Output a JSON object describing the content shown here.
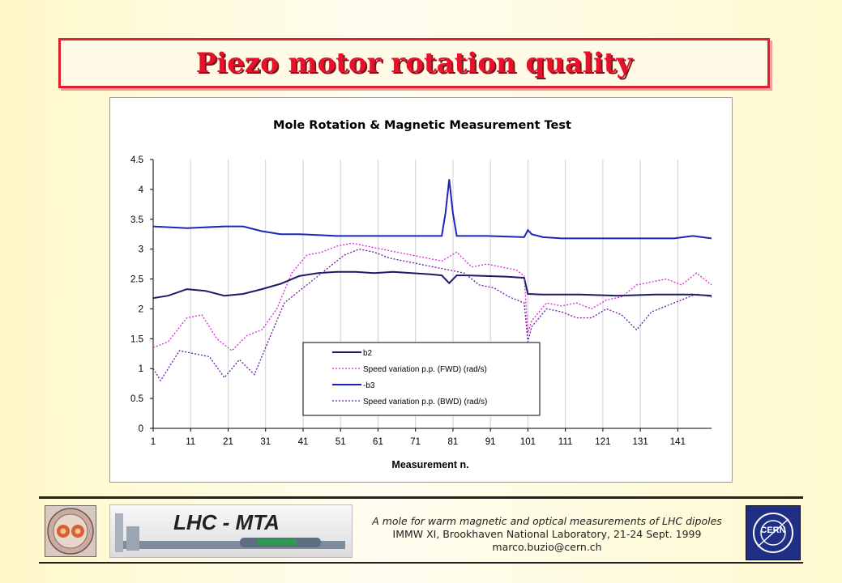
{
  "slide": {
    "title": "Piezo motor rotation quality"
  },
  "footer": {
    "line1": "A mole for warm magnetic and optical measurements  of LHC dipoles",
    "line2": "IMMW XI, Brookhaven National Laboratory, 21-24 Sept. 1999",
    "line3": "marco.buzio@cern.ch",
    "left_logo_icon": "magnet-cross-section-icon",
    "strip_label": "LHC - MTA",
    "strip_icon": "mole-device-icon",
    "right_logo_label": "CERN",
    "right_logo_icon": "cern-logo-icon"
  },
  "chart_data": {
    "type": "line",
    "title": "Mole Rotation & Magnetic Measurement Test",
    "xlabel": "Measurement n.",
    "ylabel": "",
    "xlim": [
      1,
      150
    ],
    "ylim": [
      0,
      4.5
    ],
    "x_ticks": [
      "1",
      "11",
      "21",
      "31",
      "41",
      "51",
      "61",
      "71",
      "81",
      "91",
      "101",
      "111",
      "121",
      "131",
      "141"
    ],
    "y_ticks": [
      "0",
      "0.5",
      "1",
      "1.5",
      "2",
      "2.5",
      "3",
      "3.5",
      "4",
      "4.5"
    ],
    "grid": "vertical",
    "legend": "bottom-center",
    "series": [
      {
        "name": "b2",
        "color": "#1a1a66",
        "style": "solid",
        "x": [
          1,
          5,
          10,
          15,
          20,
          25,
          30,
          35,
          40,
          45,
          50,
          55,
          60,
          65,
          70,
          75,
          78,
          80,
          82,
          85,
          90,
          95,
          100,
          101,
          105,
          110,
          115,
          120,
          125,
          130,
          135,
          140,
          145,
          150
        ],
        "values": [
          2.18,
          2.22,
          2.33,
          2.3,
          2.22,
          2.25,
          2.33,
          2.42,
          2.55,
          2.6,
          2.62,
          2.62,
          2.6,
          2.62,
          2.6,
          2.58,
          2.56,
          2.43,
          2.56,
          2.56,
          2.55,
          2.54,
          2.52,
          2.25,
          2.24,
          2.24,
          2.24,
          2.23,
          2.22,
          2.23,
          2.24,
          2.24,
          2.24,
          2.22
        ]
      },
      {
        "name": "Speed variation p.p. (FWD) (rad/s)",
        "color": "#dd22dd",
        "style": "dotted",
        "x": [
          1,
          5,
          10,
          14,
          18,
          22,
          26,
          30,
          34,
          38,
          42,
          46,
          50,
          54,
          58,
          62,
          66,
          70,
          74,
          78,
          82,
          86,
          90,
          94,
          98,
          100,
          101,
          102,
          106,
          110,
          114,
          118,
          122,
          126,
          130,
          134,
          138,
          142,
          146,
          150
        ],
        "values": [
          1.35,
          1.45,
          1.85,
          1.9,
          1.5,
          1.3,
          1.55,
          1.65,
          2.0,
          2.6,
          2.9,
          2.95,
          3.05,
          3.1,
          3.05,
          3.0,
          2.95,
          2.9,
          2.85,
          2.8,
          2.95,
          2.7,
          2.75,
          2.7,
          2.65,
          2.55,
          1.6,
          1.8,
          2.1,
          2.05,
          2.1,
          2.0,
          2.15,
          2.2,
          2.4,
          2.45,
          2.5,
          2.4,
          2.6,
          2.4
        ]
      },
      {
        "name": "-b3",
        "color": "#1f24b8",
        "style": "solid",
        "x": [
          1,
          10,
          20,
          25,
          30,
          35,
          40,
          50,
          60,
          70,
          78,
          79,
          80,
          81,
          82,
          90,
          100,
          101,
          102,
          105,
          110,
          120,
          130,
          140,
          145,
          150
        ],
        "values": [
          3.38,
          3.35,
          3.38,
          3.38,
          3.3,
          3.25,
          3.25,
          3.22,
          3.22,
          3.22,
          3.22,
          3.6,
          4.17,
          3.6,
          3.22,
          3.22,
          3.2,
          3.32,
          3.25,
          3.2,
          3.18,
          3.18,
          3.18,
          3.18,
          3.22,
          3.18
        ]
      },
      {
        "name": "Speed variation p.p. (BWD) (rad/s)",
        "color": "#6a18a0",
        "style": "dotted",
        "x": [
          1,
          3,
          5,
          8,
          12,
          16,
          20,
          24,
          28,
          32,
          36,
          40,
          44,
          48,
          52,
          56,
          60,
          64,
          68,
          72,
          76,
          80,
          84,
          88,
          92,
          96,
          100,
          101,
          102,
          106,
          110,
          114,
          118,
          122,
          126,
          130,
          134,
          138,
          142,
          146,
          150
        ],
        "values": [
          1.0,
          0.8,
          1.0,
          1.3,
          1.25,
          1.2,
          0.85,
          1.15,
          0.9,
          1.5,
          2.1,
          2.3,
          2.5,
          2.7,
          2.9,
          3.0,
          2.95,
          2.85,
          2.8,
          2.75,
          2.7,
          2.65,
          2.6,
          2.4,
          2.35,
          2.2,
          2.1,
          1.45,
          1.7,
          2.0,
          1.95,
          1.85,
          1.85,
          2.0,
          1.9,
          1.65,
          1.95,
          2.05,
          2.15,
          2.25,
          2.2
        ]
      }
    ]
  }
}
